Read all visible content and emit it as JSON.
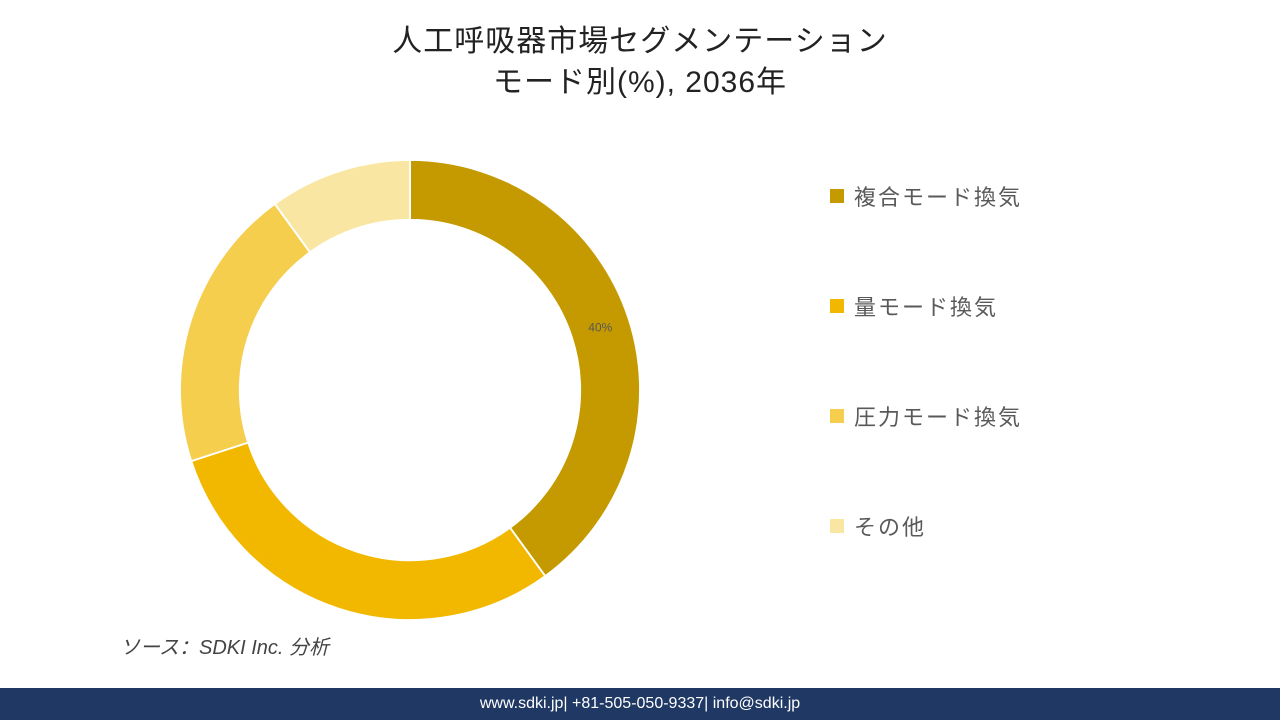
{
  "title": {
    "line1": "人工呼吸器市場セグメンテーション",
    "line2": "モード別(%), 2036年",
    "fontsize": 30,
    "color": "#222222"
  },
  "chart": {
    "type": "donut",
    "background_color": "#ffffff",
    "donut_hole_ratio": 0.74,
    "stroke_color": "#ffffff",
    "stroke_width": 2,
    "segments": [
      {
        "label": "複合モード換気",
        "value": 40,
        "color": "#c49a00",
        "show_pct_label": true
      },
      {
        "label": "量モード換気",
        "value": 30,
        "color": "#f2b800",
        "show_pct_label": false
      },
      {
        "label": "圧力モード換気",
        "value": 20,
        "color": "#f6ce4e",
        "show_pct_label": false
      },
      {
        "label": "その他",
        "value": 10,
        "color": "#f9e6a3",
        "show_pct_label": false
      }
    ],
    "pct_label_fontsize": 12,
    "pct_label_color": "#595959",
    "start_angle_deg": -90
  },
  "legend": {
    "items": [
      {
        "label": "複合モード換気",
        "color": "#c49a00"
      },
      {
        "label": "量モード換気",
        "color": "#f2b800"
      },
      {
        "label": "圧力モード換気",
        "color": "#f6ce4e"
      },
      {
        "label": "その他",
        "color": "#f9e6a3"
      }
    ],
    "fontsize": 22,
    "text_color": "#595959",
    "swatch_size": 14
  },
  "source": {
    "text": "ソース：SDKI Inc. 分析",
    "fontsize": 20,
    "font_style": "italic"
  },
  "footer": {
    "website": "www.sdki.jp",
    "phone": "+81-505-050-9337",
    "email": "info@sdki.jp",
    "background_color": "#1f3864",
    "text_color": "#ffffff",
    "fontsize": 16
  }
}
